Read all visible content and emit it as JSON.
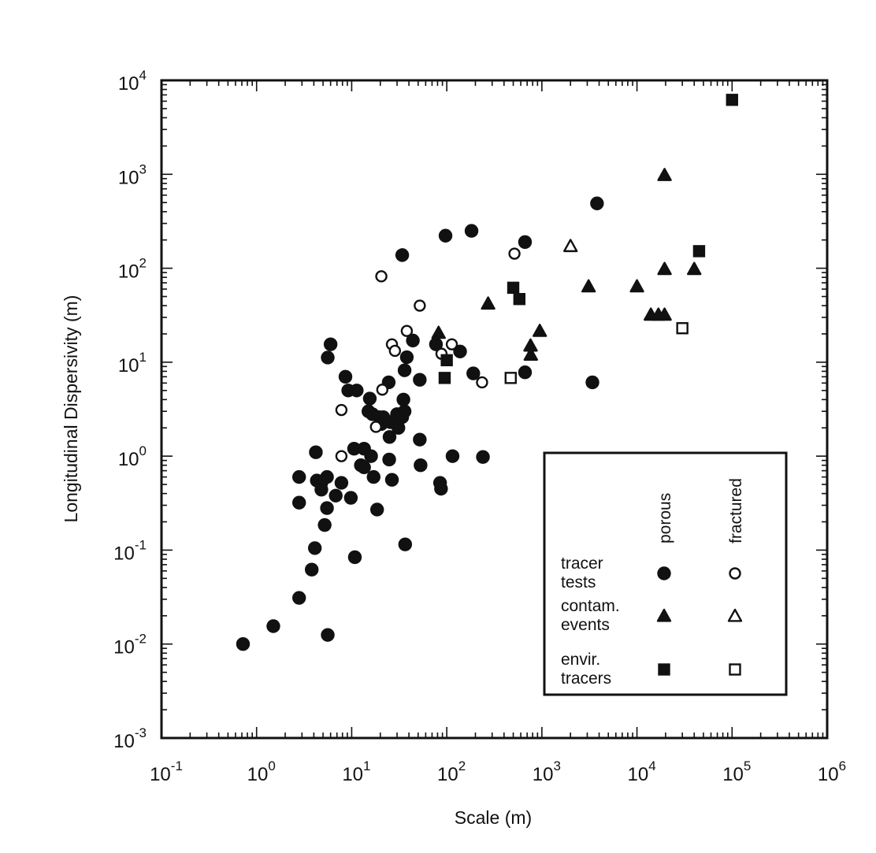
{
  "chart_data": {
    "type": "scatter",
    "title": "",
    "xlabel": "Scale (m)",
    "ylabel": "Longitudinal Dispersivity (m)",
    "xscale": "log",
    "yscale": "log",
    "xlim": [
      0.1,
      1000000
    ],
    "ylim": [
      0.001,
      10000
    ],
    "x_ticks": [
      {
        "base": "10",
        "exp": "-1",
        "value": 0.1
      },
      {
        "base": "10",
        "exp": "0",
        "value": 1
      },
      {
        "base": "10",
        "exp": "1",
        "value": 10
      },
      {
        "base": "10",
        "exp": "2",
        "value": 100
      },
      {
        "base": "10",
        "exp": "3",
        "value": 1000
      },
      {
        "base": "10",
        "exp": "4",
        "value": 10000
      },
      {
        "base": "10",
        "exp": "5",
        "value": 100000
      },
      {
        "base": "10",
        "exp": "6",
        "value": 1000000
      }
    ],
    "y_ticks": [
      {
        "base": "10",
        "exp": "-3",
        "value": 0.001
      },
      {
        "base": "10",
        "exp": "-2",
        "value": 0.01
      },
      {
        "base": "10",
        "exp": "-1",
        "value": 0.1
      },
      {
        "base": "10",
        "exp": "0",
        "value": 1
      },
      {
        "base": "10",
        "exp": "1",
        "value": 10
      },
      {
        "base": "10",
        "exp": "2",
        "value": 100
      },
      {
        "base": "10",
        "exp": "3",
        "value": 1000
      },
      {
        "base": "10",
        "exp": "4",
        "value": 10000
      }
    ],
    "grid": false,
    "legend": {
      "placement": "bottom-right",
      "column_headers": [
        "porous",
        "fractured"
      ],
      "rows": [
        {
          "lines": [
            "tracer",
            "tests"
          ],
          "marker": "circle"
        },
        {
          "lines": [
            "contam.",
            "events"
          ],
          "marker": "triangle"
        },
        {
          "lines": [
            "envir.",
            "tracers"
          ],
          "marker": "square"
        }
      ]
    },
    "series": [
      {
        "marker": "circle",
        "fill": "filled",
        "points": [
          [
            0.72,
            0.01
          ],
          [
            1.5,
            0.0155
          ],
          [
            2.8,
            0.031
          ],
          [
            2.8,
            0.6
          ],
          [
            2.8,
            0.32
          ],
          [
            3.8,
            0.062
          ],
          [
            4.1,
            0.105
          ],
          [
            4.2,
            1.1
          ],
          [
            4.3,
            0.55
          ],
          [
            4.8,
            0.52
          ],
          [
            4.8,
            0.44
          ],
          [
            5.2,
            0.185
          ],
          [
            5.5,
            0.6
          ],
          [
            5.5,
            0.28
          ],
          [
            5.6,
            0.0125
          ],
          [
            5.6,
            11.2
          ],
          [
            6,
            15.5
          ],
          [
            6.8,
            0.38
          ],
          [
            7.8,
            0.52
          ],
          [
            8.6,
            7
          ],
          [
            9.2,
            5
          ],
          [
            9.8,
            0.36
          ],
          [
            10.6,
            1.2
          ],
          [
            10.8,
            0.084
          ],
          [
            11.3,
            5
          ],
          [
            12.5,
            0.8
          ],
          [
            13.5,
            0.76
          ],
          [
            13.5,
            1.2
          ],
          [
            15,
            3
          ],
          [
            15.5,
            4.1
          ],
          [
            16,
            1
          ],
          [
            16.5,
            2.8
          ],
          [
            17,
            0.6
          ],
          [
            18.5,
            0.27
          ],
          [
            19.5,
            2.6
          ],
          [
            20.5,
            2.2
          ],
          [
            21.5,
            2.6
          ],
          [
            24.5,
            6.1
          ],
          [
            24.8,
            0.92
          ],
          [
            25,
            1.6
          ],
          [
            25.5,
            2.3
          ],
          [
            26.5,
            0.56
          ],
          [
            30,
            2.8
          ],
          [
            31,
            2
          ],
          [
            34,
            138
          ],
          [
            34,
            2.6
          ],
          [
            35,
            4
          ],
          [
            36,
            3
          ],
          [
            36,
            8.2
          ],
          [
            36.5,
            0.115
          ],
          [
            38,
            11.3
          ],
          [
            44,
            17
          ],
          [
            52,
            6.5
          ],
          [
            52,
            1.5
          ],
          [
            53,
            0.8
          ],
          [
            77,
            15.5
          ],
          [
            85,
            0.52
          ],
          [
            87,
            0.45
          ],
          [
            97,
            222
          ],
          [
            115,
            1
          ],
          [
            138,
            13
          ],
          [
            182,
            250
          ],
          [
            190,
            7.6
          ],
          [
            240,
            0.98
          ],
          [
            665,
            190
          ],
          [
            665,
            7.8
          ],
          [
            3400,
            6.1
          ],
          [
            3800,
            490
          ]
        ]
      },
      {
        "marker": "circle",
        "fill": "open",
        "points": [
          [
            7.8,
            3.1
          ],
          [
            7.8,
            1
          ],
          [
            18,
            2.05
          ],
          [
            20.5,
            82
          ],
          [
            21,
            5.1
          ],
          [
            26.5,
            15.5
          ],
          [
            28.5,
            13.2
          ],
          [
            38,
            21.5
          ],
          [
            52,
            40
          ],
          [
            88,
            12.3
          ],
          [
            113,
            15.5
          ],
          [
            235,
            6.1
          ],
          [
            515,
            143
          ]
        ]
      },
      {
        "marker": "triangle",
        "fill": "filled",
        "points": [
          [
            82,
            20.5
          ],
          [
            272,
            42
          ],
          [
            760,
            15
          ],
          [
            765,
            12
          ],
          [
            950,
            21.5
          ],
          [
            3100,
            64
          ],
          [
            10000,
            64
          ],
          [
            14000,
            32
          ],
          [
            16800,
            32
          ],
          [
            19500,
            32
          ],
          [
            19500,
            980
          ],
          [
            19500,
            98
          ],
          [
            40000,
            98
          ]
        ]
      },
      {
        "marker": "triangle",
        "fill": "open",
        "points": [
          [
            2000,
            172
          ]
        ]
      },
      {
        "marker": "square",
        "fill": "filled",
        "points": [
          [
            95,
            6.8
          ],
          [
            100,
            10.5
          ],
          [
            500,
            62
          ],
          [
            580,
            47
          ],
          [
            45000,
            152
          ],
          [
            100000,
            6200
          ]
        ]
      },
      {
        "marker": "square",
        "fill": "open",
        "points": [
          [
            470,
            6.8
          ],
          [
            30000,
            23
          ]
        ]
      }
    ]
  }
}
